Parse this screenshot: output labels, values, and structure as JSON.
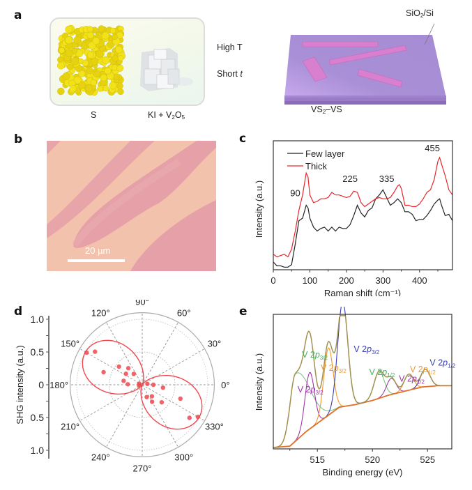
{
  "panels": {
    "a": {
      "label": "a",
      "reagent1": "S",
      "reagent2_main": "KI + V",
      "reagent2_sub1": "2",
      "reagent2_mid": "O",
      "reagent2_sub2": "5",
      "condition1": "High T",
      "condition2_main": "Short ",
      "condition2_italic": "t",
      "substrate_main": "SiO",
      "substrate_sub": "2",
      "substrate_tail": "/Si",
      "product_main": "VS",
      "product_sub": "2",
      "product_tail": "–VS",
      "colors": {
        "sulfur": "#f2e21a",
        "precursor": "#e6e9ec",
        "substrate": "#a98fd6",
        "flake": "#d97fcf",
        "box_fill": "#f6f9e8"
      }
    },
    "b": {
      "label": "b",
      "scale_bar_label": "20 µm",
      "colors": {
        "background": "#f3c2ac",
        "flake": "#e6a1a8"
      }
    },
    "d": {
      "label": "d"
    },
    "e": {
      "label": "e"
    },
    "c": {
      "label": "c"
    }
  },
  "chart_data": [
    {
      "panel": "c",
      "type": "line",
      "xlabel": "Raman shift (cm⁻¹)",
      "ylabel": "Intensity (a.u.)",
      "xlim": [
        0,
        490
      ],
      "ylim": [
        0,
        1
      ],
      "xticks": [
        0,
        100,
        200,
        300,
        400
      ],
      "xtick_labels": [
        "0",
        "100",
        "200",
        "300",
        "400"
      ],
      "yticks": [],
      "legend": {
        "placement": "top-left",
        "entries": [
          "Few layer",
          "Thick"
        ]
      },
      "annotations": [
        {
          "text": "90",
          "x": 60,
          "y": 0.57
        },
        {
          "text": "225",
          "x": 210,
          "y": 0.68
        },
        {
          "text": "335",
          "x": 310,
          "y": 0.68
        },
        {
          "text": "455",
          "x": 435,
          "y": 0.92
        }
      ],
      "series": [
        {
          "name": "Few layer",
          "color": "#222222",
          "x": [
            0,
            10,
            20,
            30,
            40,
            50,
            60,
            70,
            80,
            90,
            95,
            100,
            110,
            120,
            130,
            140,
            150,
            160,
            170,
            180,
            190,
            200,
            210,
            220,
            230,
            240,
            250,
            260,
            270,
            280,
            290,
            300,
            310,
            320,
            330,
            340,
            350,
            360,
            370,
            380,
            390,
            400,
            410,
            420,
            430,
            440,
            450,
            455,
            460,
            470,
            480,
            490
          ],
          "y": [
            0.06,
            0.03,
            0.03,
            0.02,
            0.02,
            0.04,
            0.2,
            0.38,
            0.4,
            0.5,
            0.48,
            0.4,
            0.33,
            0.3,
            0.32,
            0.33,
            0.3,
            0.33,
            0.3,
            0.33,
            0.32,
            0.32,
            0.35,
            0.42,
            0.5,
            0.44,
            0.41,
            0.46,
            0.48,
            0.55,
            0.58,
            0.62,
            0.56,
            0.5,
            0.52,
            0.55,
            0.52,
            0.45,
            0.45,
            0.43,
            0.38,
            0.39,
            0.39,
            0.42,
            0.46,
            0.51,
            0.54,
            0.55,
            0.5,
            0.42,
            0.43,
            0.38
          ]
        },
        {
          "name": "Thick",
          "color": "#e8262a",
          "x": [
            0,
            10,
            20,
            30,
            40,
            50,
            60,
            70,
            80,
            90,
            95,
            100,
            110,
            120,
            130,
            140,
            150,
            160,
            170,
            180,
            190,
            200,
            210,
            220,
            230,
            240,
            250,
            260,
            270,
            280,
            290,
            300,
            310,
            320,
            330,
            340,
            345,
            350,
            360,
            370,
            380,
            390,
            400,
            410,
            420,
            430,
            440,
            450,
            455,
            460,
            470,
            480,
            490
          ],
          "y": [
            0.12,
            0.1,
            0.11,
            0.12,
            0.1,
            0.16,
            0.3,
            0.46,
            0.58,
            0.75,
            0.72,
            0.58,
            0.52,
            0.53,
            0.55,
            0.55,
            0.56,
            0.6,
            0.58,
            0.58,
            0.57,
            0.56,
            0.57,
            0.61,
            0.6,
            0.52,
            0.49,
            0.51,
            0.53,
            0.55,
            0.56,
            0.55,
            0.55,
            0.56,
            0.6,
            0.65,
            0.66,
            0.63,
            0.5,
            0.5,
            0.49,
            0.49,
            0.51,
            0.55,
            0.6,
            0.62,
            0.7,
            0.84,
            0.87,
            0.82,
            0.73,
            0.62,
            0.58
          ]
        }
      ]
    },
    {
      "panel": "d",
      "type": "scatter",
      "subtype": "polar",
      "ylabel": "SHG intensity (a.u.)",
      "radial_ticks": [
        1.0,
        0.5,
        0,
        0.5,
        1.0
      ],
      "radial_tick_labels": [
        "1.0",
        "0.5",
        "0",
        "0.5",
        "1.0"
      ],
      "rlim": [
        0,
        1.0
      ],
      "angular_ticks_deg": [
        0,
        30,
        60,
        90,
        120,
        150,
        180,
        210,
        240,
        270,
        300,
        330
      ],
      "angular_tick_labels": [
        "0°",
        "30°",
        "60°",
        "90°",
        "120°",
        "150°",
        "180°",
        "210°",
        "240°",
        "270°",
        "300°",
        "330°"
      ],
      "grid": true,
      "series": [
        {
          "name": "data",
          "color": "#f0474f",
          "points": [
            {
              "theta": 150,
              "r": 0.98
            },
            {
              "theta": 145,
              "r": 0.88
            },
            {
              "theta": 162,
              "r": 0.62
            },
            {
              "theta": 142,
              "r": 0.45
            },
            {
              "theta": 130,
              "r": 0.33
            },
            {
              "theta": 146,
              "r": 0.3
            },
            {
              "theta": 128,
              "r": 0.21
            },
            {
              "theta": 168,
              "r": 0.29
            },
            {
              "theta": 178,
              "r": 0.22
            },
            {
              "theta": 160,
              "r": 0.05
            },
            {
              "theta": 190,
              "r": 0.05
            },
            {
              "theta": 10,
              "r": 0.08
            },
            {
              "theta": 0,
              "r": 0.17
            },
            {
              "theta": 352,
              "r": 0.32
            },
            {
              "theta": 290,
              "r": 0.2
            },
            {
              "theta": 310,
              "r": 0.23
            },
            {
              "theta": 300,
              "r": 0.3
            },
            {
              "theta": 318,
              "r": 0.4
            },
            {
              "theta": 340,
              "r": 0.62
            },
            {
              "theta": 330,
              "r": 0.98
            },
            {
              "theta": 325,
              "r": 0.88
            }
          ]
        },
        {
          "name": "fit",
          "color": "#f0474f",
          "model": "cos^2(theta - 150)",
          "amplitude": 1.0
        }
      ]
    },
    {
      "panel": "e",
      "type": "line",
      "xlabel": "Binding energy (eV)",
      "ylabel": "Intensity (a.u.)",
      "xlim": [
        511,
        527.2
      ],
      "ylim": [
        0,
        1
      ],
      "xticks": [
        515,
        520,
        525
      ],
      "xtick_labels": [
        "515",
        "520",
        "525"
      ],
      "yticks": [],
      "annotations": [
        {
          "text": "V 2p3/2",
          "color": "#4caf62",
          "x": 513.6,
          "y": 0.68
        },
        {
          "text": "V 2p3/2",
          "color": "#f09a2c",
          "x": 515.3,
          "y": 0.58
        },
        {
          "text": "V 2p3/2",
          "color": "#a136a8",
          "x": 513.2,
          "y": 0.42
        },
        {
          "text": "V 2p3/2",
          "color": "#3a3fae",
          "x": 518.3,
          "y": 0.72
        },
        {
          "text": "V 2p1/2",
          "color": "#4caf62",
          "x": 519.7,
          "y": 0.55
        },
        {
          "text": "V 2p1/2",
          "color": "#a136a8",
          "x": 522.4,
          "y": 0.5
        },
        {
          "text": "V 2p1/2",
          "color": "#f09a2c",
          "x": 523.4,
          "y": 0.57
        },
        {
          "text": "V 2p1/2",
          "color": "#3a3fae",
          "x": 525.2,
          "y": 0.62
        }
      ],
      "background": {
        "name": "background",
        "color": "#e0702a",
        "x": [
          511,
          512.5,
          514,
          515.5,
          517,
          518.5,
          520,
          521.5,
          523,
          524.5,
          526,
          527.2
        ],
        "y": [
          0.01,
          0.02,
          0.13,
          0.22,
          0.31,
          0.33,
          0.36,
          0.4,
          0.43,
          0.46,
          0.47,
          0.47
        ]
      },
      "peaks": [
        {
          "name": "V 2p3/2 (green)",
          "color": "#7cc58a",
          "center": 513.0,
          "height": 0.5,
          "width": 0.7,
          "tail": true
        },
        {
          "name": "V 2p3/2 (purple)",
          "color": "#a136a8",
          "center": 514.3,
          "height": 0.42,
          "width": 0.6
        },
        {
          "name": "V 2p3/2 (orange)",
          "color": "#f09a2c",
          "center": 516.0,
          "height": 0.5,
          "width": 0.6
        },
        {
          "name": "V 2p3/2 (blue)",
          "color": "#3a3fae",
          "center": 517.3,
          "height": 0.78,
          "width": 0.65
        },
        {
          "name": "V 2p1/2 (green)",
          "color": "#7cc58a",
          "center": 520.6,
          "height": 0.2,
          "width": 0.65
        },
        {
          "name": "V 2p1/2 (purple)",
          "color": "#a136a8",
          "center": 521.7,
          "height": 0.12,
          "width": 0.6
        },
        {
          "name": "V 2p1/2 (orange)",
          "color": "#f09a2c",
          "center": 523.3,
          "height": 0.12,
          "width": 0.6
        },
        {
          "name": "V 2p1/2 (blue)",
          "color": "#3a3fae",
          "center": 524.8,
          "height": 0.13,
          "width": 0.6
        }
      ],
      "envelope": {
        "name": "envelope",
        "color": "#a39150"
      }
    }
  ]
}
